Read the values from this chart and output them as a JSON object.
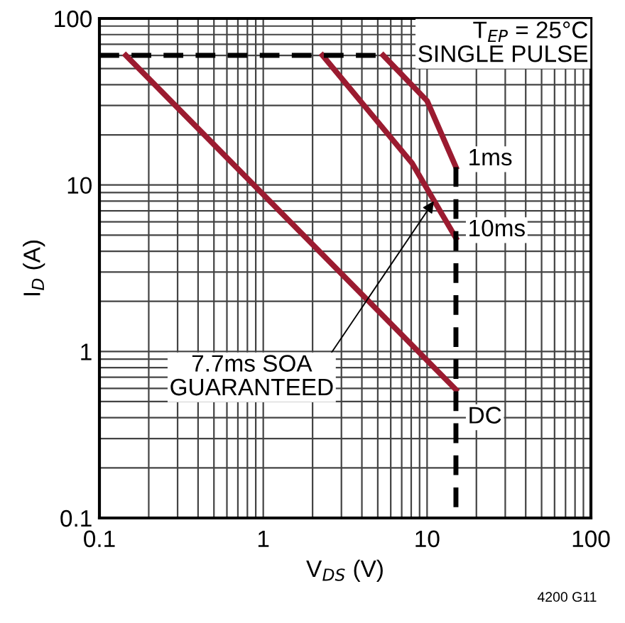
{
  "chart_data": {
    "type": "line",
    "xlabel": "V$_{DS}$ (V)",
    "ylabel": "I$_{D}$ (A)",
    "log": "xy",
    "xlim": [
      0.1,
      100
    ],
    "ylim": [
      0.1,
      100
    ],
    "xticks": [
      0.1,
      1,
      10,
      100
    ],
    "yticks": [
      0.1,
      1,
      10,
      100
    ],
    "grid": true,
    "legend": false,
    "series": [
      {
        "name": "DC",
        "color": "#9b1b30",
        "x": [
          0.145,
          15
        ],
        "values": [
          60,
          0.59
        ],
        "line_style": "solid"
      },
      {
        "name": "10ms",
        "color": "#9b1b30",
        "x": [
          2.3,
          8.1,
          15
        ],
        "values": [
          60,
          13.5,
          4.8
        ],
        "line_style": "solid"
      },
      {
        "name": "1ms",
        "color": "#9b1b30",
        "x": [
          5.4,
          10,
          15
        ],
        "values": [
          60,
          32,
          12.8
        ],
        "line_style": "solid"
      },
      {
        "color": "#000000",
        "x": [
          0.1,
          5.4
        ],
        "values": [
          60,
          60
        ],
        "line_style": "dashed"
      },
      {
        "color": "#000000",
        "x": [
          15,
          15
        ],
        "values": [
          12.8,
          0.1
        ],
        "line_style": "dashed"
      }
    ],
    "annotations": [
      "T$_{EP}$ = 25°C\nSINGLE PULSE",
      {
        "text": "7.7ms SOA\nGUARANTEED",
        "x": 11,
        "y": 8
      },
      "4200 G11"
    ]
  }
}
